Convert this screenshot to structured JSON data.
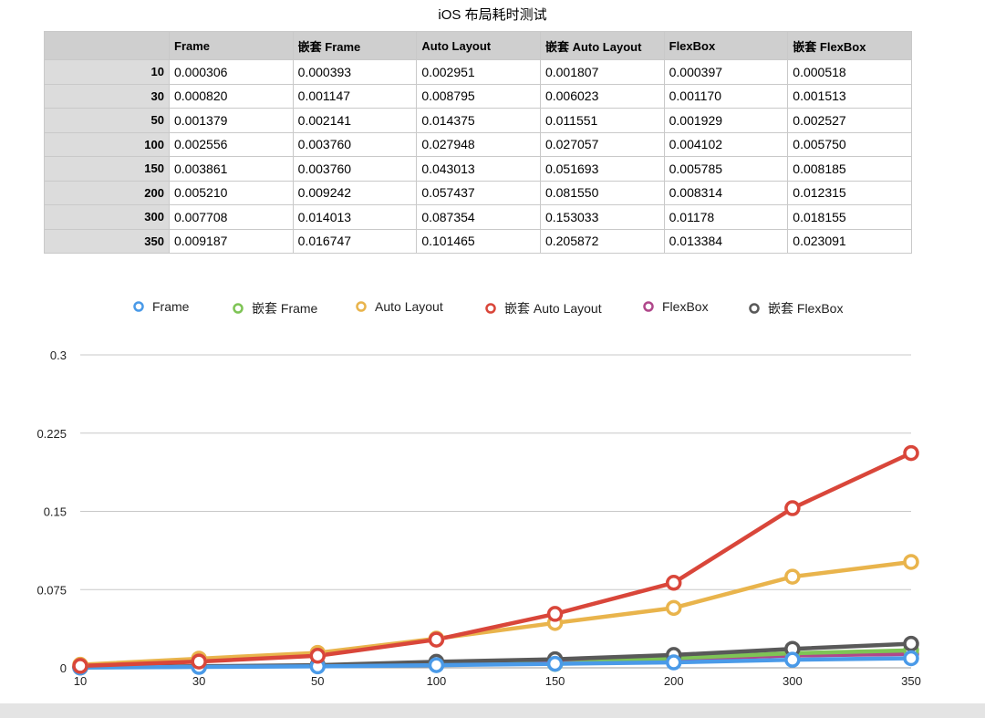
{
  "title": "iOS 布局耗时测试",
  "table": {
    "headers": [
      "",
      "Frame",
      "嵌套 Frame",
      "Auto Layout",
      "嵌套 Auto Layout",
      "FlexBox",
      "嵌套 FlexBox"
    ],
    "rows": [
      [
        "10",
        "0.000306",
        "0.000393",
        "0.002951",
        "0.001807",
        "0.000397",
        "0.000518"
      ],
      [
        "30",
        "0.000820",
        "0.001147",
        "0.008795",
        "0.006023",
        "0.001170",
        "0.001513"
      ],
      [
        "50",
        "0.001379",
        "0.002141",
        "0.014375",
        "0.011551",
        "0.001929",
        "0.002527"
      ],
      [
        "100",
        "0.002556",
        "0.003760",
        "0.027948",
        "0.027057",
        "0.004102",
        "0.005750"
      ],
      [
        "150",
        "0.003861",
        "0.003760",
        "0.043013",
        "0.051693",
        "0.005785",
        "0.008185"
      ],
      [
        "200",
        "0.005210",
        "0.009242",
        "0.057437",
        "0.081550",
        "0.008314",
        "0.012315"
      ],
      [
        "300",
        "0.007708",
        "0.014013",
        "0.087354",
        "0.153033",
        "0.01178",
        "0.018155"
      ],
      [
        "350",
        "0.009187",
        "0.016747",
        "0.101465",
        "0.205872",
        "0.013384",
        "0.023091"
      ]
    ]
  },
  "chart_data": {
    "type": "line",
    "categories": [
      "10",
      "30",
      "50",
      "100",
      "150",
      "200",
      "300",
      "350"
    ],
    "ylim": [
      0,
      0.3
    ],
    "yticks": [
      "0",
      "0.075",
      "0.15",
      "0.225",
      "0.3"
    ],
    "grid": true,
    "legend_position": "top",
    "series": [
      {
        "name": "Frame",
        "color": "#4a9ae8",
        "values": [
          0.000306,
          0.00082,
          0.001379,
          0.002556,
          0.003861,
          0.00521,
          0.007708,
          0.009187
        ]
      },
      {
        "name": "嵌套 Frame",
        "color": "#7ec455",
        "values": [
          0.000393,
          0.001147,
          0.002141,
          0.00376,
          0.00376,
          0.009242,
          0.014013,
          0.016747
        ]
      },
      {
        "name": "Auto Layout",
        "color": "#e9b44c",
        "values": [
          0.002951,
          0.008795,
          0.014375,
          0.027948,
          0.043013,
          0.057437,
          0.087354,
          0.101465
        ]
      },
      {
        "name": "嵌套 Auto Layout",
        "color": "#d9463a",
        "values": [
          0.001807,
          0.006023,
          0.011551,
          0.027057,
          0.051693,
          0.08155,
          0.153033,
          0.205872
        ]
      },
      {
        "name": "FlexBox",
        "color": "#b0488b",
        "values": [
          0.000397,
          0.00117,
          0.001929,
          0.004102,
          0.005785,
          0.008314,
          0.01178,
          0.013384
        ]
      },
      {
        "name": "嵌套 FlexBox",
        "color": "#595959",
        "values": [
          0.000518,
          0.001513,
          0.002527,
          0.00575,
          0.008185,
          0.012315,
          0.018155,
          0.023091
        ]
      }
    ]
  }
}
